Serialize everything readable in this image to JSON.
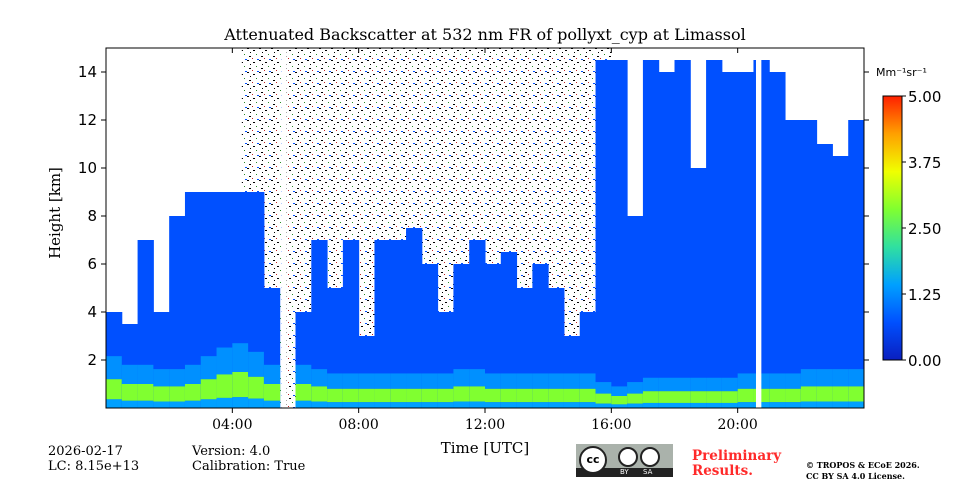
{
  "chart_data": {
    "type": "heatmap",
    "title": "Attenuated Backscatter at 532 nm FR of pollyxt_cyp at Limassol",
    "xlabel": "Time [UTC]",
    "ylabel": "Height [km]",
    "xlim_hours": [
      0,
      24
    ],
    "ylim": [
      0,
      15
    ],
    "xticks": [
      "04:00",
      "08:00",
      "12:00",
      "16:00",
      "20:00"
    ],
    "xtick_hours": [
      4,
      8,
      12,
      16,
      20
    ],
    "yticks": [
      2,
      4,
      6,
      8,
      10,
      12,
      14
    ],
    "colorbar": {
      "unit": "Mm⁻¹sr⁻¹",
      "range": [
        0,
        5
      ],
      "ticks": [
        "0.00",
        "1.25",
        "2.50",
        "3.75",
        "5.00"
      ],
      "colors": [
        "#0a1fbf",
        "#0050ff",
        "#00a0ff",
        "#30e0a0",
        "#80ff30",
        "#f0ff00",
        "#ffa000",
        "#ff2000"
      ]
    },
    "bin_hours": 0.5,
    "signal_top_km": [
      4,
      3.5,
      7,
      4,
      8,
      9,
      9,
      9,
      9,
      9,
      5,
      0,
      4,
      7,
      5,
      7,
      3,
      7,
      7,
      7.5,
      6,
      4,
      6,
      7,
      6,
      6.5,
      5,
      6,
      5,
      3,
      4,
      14.5,
      14.5,
      8,
      14.5,
      14,
      14.5,
      10,
      14.5,
      14,
      14,
      14.5,
      14,
      12,
      12,
      11,
      10.5,
      12
    ],
    "surface_layer_km": [
      1.2,
      1.0,
      1.0,
      0.9,
      0.9,
      1.0,
      1.2,
      1.4,
      1.5,
      1.3,
      1.0,
      0,
      1.0,
      0.9,
      0.8,
      0.8,
      0.8,
      0.8,
      0.8,
      0.8,
      0.8,
      0.8,
      0.9,
      0.9,
      0.8,
      0.8,
      0.8,
      0.8,
      0.8,
      0.8,
      0.8,
      0.6,
      0.5,
      0.6,
      0.7,
      0.7,
      0.7,
      0.7,
      0.7,
      0.7,
      0.8,
      0.8,
      0.8,
      0.8,
      0.9,
      0.9,
      0.9,
      0.9
    ],
    "noise_region_hours": [
      4.3,
      16
    ],
    "data_gaps_hours": [
      [
        5.55,
        5.72
      ],
      [
        20.58,
        20.75
      ]
    ]
  },
  "footer": {
    "date": "2026-02-17",
    "lc": "LC: 8.15e+13",
    "version": "Version: 4.0",
    "calibration": "Calibration: True",
    "preliminary_1": "Preliminary",
    "preliminary_2": "Results.",
    "copyright": "© TROPOS & ECoE 2026.",
    "license": "CC BY SA 4.0 License.",
    "cc_by": "BY",
    "cc_sa": "SA",
    "cc_logo": "cc"
  }
}
